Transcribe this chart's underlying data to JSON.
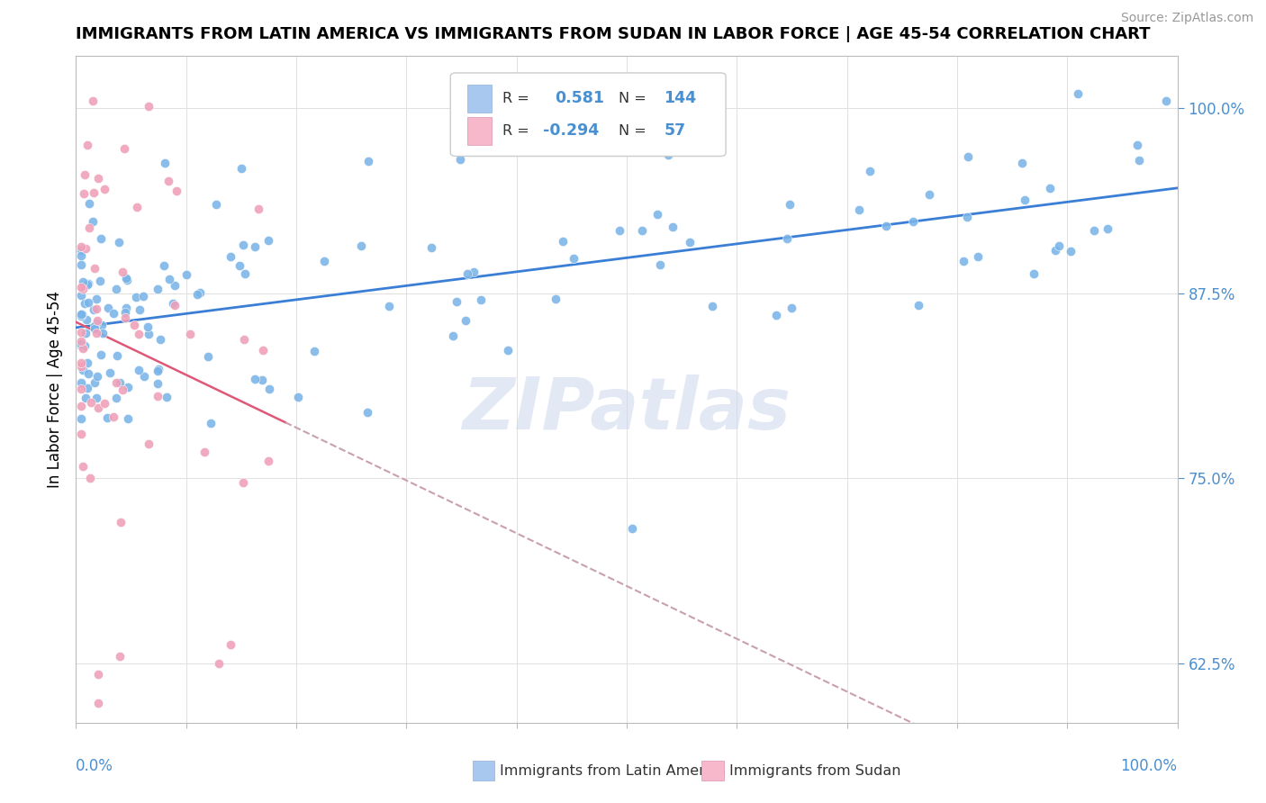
{
  "title": "IMMIGRANTS FROM LATIN AMERICA VS IMMIGRANTS FROM SUDAN IN LABOR FORCE | AGE 45-54 CORRELATION CHART",
  "source": "Source: ZipAtlas.com",
  "ylabel": "In Labor Force | Age 45-54",
  "watermark_text": "ZIPatlas",
  "legend1_color": "#a8c8f0",
  "legend2_color": "#f8b8cc",
  "dot_color_blue": "#7ab4e8",
  "dot_color_pink": "#f0a0b8",
  "line_color_blue": "#3a7fd5",
  "line_color_pink_solid": "#e05878",
  "line_color_pink_dashed": "#c8a0b0",
  "background_color": "#ffffff",
  "grid_color": "#e0e0e0",
  "axis_label_color": "#4a8fd0",
  "R1": 0.581,
  "N1": 144,
  "R2": -0.294,
  "N2": 57,
  "xlim": [
    0.0,
    1.0
  ],
  "ylim": [
    0.585,
    1.035
  ],
  "yticks": [
    0.625,
    0.75,
    0.875,
    1.0
  ],
  "ytick_labels": [
    "62.5%",
    "75.0%",
    "87.5%",
    "100.0%"
  ],
  "blue_line_start_y": 0.82,
  "blue_line_end_y": 0.93,
  "pink_line_start_y": 0.843,
  "pink_line_slope": -0.55
}
